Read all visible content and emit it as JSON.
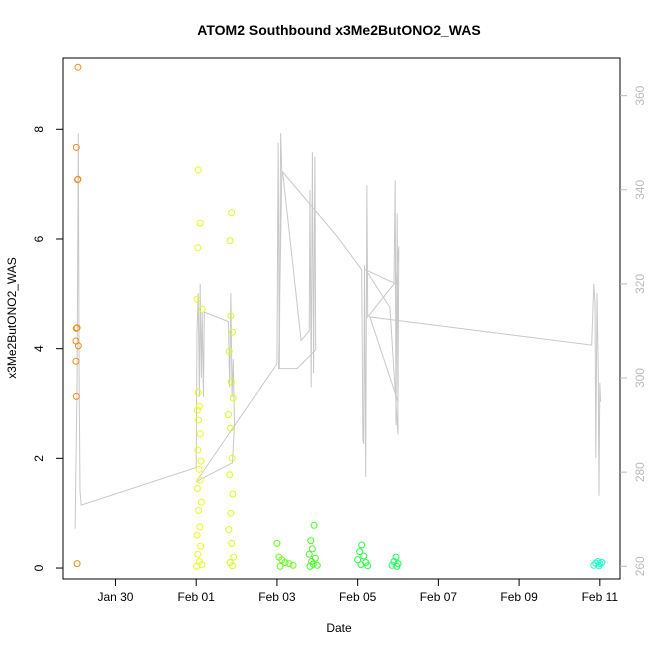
{
  "chart_data": {
    "type": "scatter",
    "title": "ATOM2 Southbound x3Me2ButONO2_WAS",
    "xlabel": "Date",
    "ylabel": "x3Me2ButONO2_WAS",
    "x_ticks": [
      "Jan 30",
      "Feb 01",
      "Feb 03",
      "Feb 05",
      "Feb 07",
      "Feb 09",
      "Feb 11"
    ],
    "x_tick_days": [
      29,
      31,
      33,
      35,
      37,
      39,
      41
    ],
    "xlim_days": [
      27.7,
      41.5
    ],
    "y_ticks": [
      0,
      2,
      4,
      6,
      8
    ],
    "ylim": [
      -0.2,
      9.3
    ],
    "y2_ticks": [
      260,
      280,
      300,
      320,
      340,
      360
    ],
    "y2lim": [
      257.3,
      368
    ],
    "colors": {
      "axis": "#000000",
      "right_axis": "#bbbbbb",
      "altitude_line": "#c8c8c8"
    },
    "points": [
      {
        "x": 28.07,
        "y": 9.13,
        "color": "#f08c1c"
      },
      {
        "x": 28.03,
        "y": 7.67,
        "color": "#f08c1c"
      },
      {
        "x": 28.06,
        "y": 7.08,
        "color": "#f08c1c"
      },
      {
        "x": 28.07,
        "y": 7.09,
        "color": "#f08c1c"
      },
      {
        "x": 28.03,
        "y": 4.37,
        "color": "#f08c1c"
      },
      {
        "x": 28.05,
        "y": 4.38,
        "color": "#f08c1c"
      },
      {
        "x": 28.02,
        "y": 4.14,
        "color": "#f08c1c"
      },
      {
        "x": 28.08,
        "y": 4.05,
        "color": "#f08c1c"
      },
      {
        "x": 28.02,
        "y": 3.77,
        "color": "#f08c1c"
      },
      {
        "x": 28.03,
        "y": 3.13,
        "color": "#f08c1c"
      },
      {
        "x": 28.05,
        "y": 0.08,
        "color": "#f08c1c"
      },
      {
        "x": 31.05,
        "y": 7.26,
        "color": "#e6ff1a"
      },
      {
        "x": 31.1,
        "y": 6.29,
        "color": "#e6ff1a"
      },
      {
        "x": 31.04,
        "y": 5.84,
        "color": "#e6ff1a"
      },
      {
        "x": 31.02,
        "y": 4.9,
        "color": "#e6ff1a"
      },
      {
        "x": 31.15,
        "y": 4.72,
        "color": "#e6ff1a"
      },
      {
        "x": 31.05,
        "y": 3.2,
        "color": "#e6ff1a"
      },
      {
        "x": 31.08,
        "y": 2.95,
        "color": "#e6ff1a"
      },
      {
        "x": 31.03,
        "y": 2.88,
        "color": "#e6ff1a"
      },
      {
        "x": 31.06,
        "y": 2.7,
        "color": "#e6ff1a"
      },
      {
        "x": 31.1,
        "y": 2.45,
        "color": "#e6ff1a"
      },
      {
        "x": 31.04,
        "y": 2.15,
        "color": "#e6ff1a"
      },
      {
        "x": 31.12,
        "y": 1.95,
        "color": "#e6ff1a"
      },
      {
        "x": 31.07,
        "y": 1.8,
        "color": "#e6ff1a"
      },
      {
        "x": 31.1,
        "y": 1.6,
        "color": "#e6ff1a"
      },
      {
        "x": 31.03,
        "y": 1.45,
        "color": "#e6ff1a"
      },
      {
        "x": 31.13,
        "y": 1.2,
        "color": "#e6ff1a"
      },
      {
        "x": 31.06,
        "y": 1.05,
        "color": "#e6ff1a"
      },
      {
        "x": 31.09,
        "y": 0.75,
        "color": "#e6ff1a"
      },
      {
        "x": 31.02,
        "y": 0.6,
        "color": "#e6ff1a"
      },
      {
        "x": 31.11,
        "y": 0.4,
        "color": "#e6ff1a"
      },
      {
        "x": 31.04,
        "y": 0.25,
        "color": "#e6ff1a"
      },
      {
        "x": 31.08,
        "y": 0.12,
        "color": "#e6ff1a"
      },
      {
        "x": 31.14,
        "y": 0.06,
        "color": "#e6ff1a"
      },
      {
        "x": 31.01,
        "y": 0.03,
        "color": "#e6ff1a"
      },
      {
        "x": 31.88,
        "y": 6.48,
        "color": "#d4ff1a"
      },
      {
        "x": 31.84,
        "y": 5.97,
        "color": "#d4ff1a"
      },
      {
        "x": 31.86,
        "y": 4.6,
        "color": "#d4ff1a"
      },
      {
        "x": 31.9,
        "y": 4.3,
        "color": "#d4ff1a"
      },
      {
        "x": 31.82,
        "y": 3.95,
        "color": "#d4ff1a"
      },
      {
        "x": 31.87,
        "y": 3.4,
        "color": "#d4ff1a"
      },
      {
        "x": 31.92,
        "y": 3.1,
        "color": "#d4ff1a"
      },
      {
        "x": 31.8,
        "y": 2.8,
        "color": "#d4ff1a"
      },
      {
        "x": 31.85,
        "y": 2.55,
        "color": "#d4ff1a"
      },
      {
        "x": 31.89,
        "y": 2.0,
        "color": "#d4ff1a"
      },
      {
        "x": 31.83,
        "y": 1.7,
        "color": "#d4ff1a"
      },
      {
        "x": 31.91,
        "y": 1.35,
        "color": "#d4ff1a"
      },
      {
        "x": 31.86,
        "y": 1.0,
        "color": "#d4ff1a"
      },
      {
        "x": 31.81,
        "y": 0.7,
        "color": "#d4ff1a"
      },
      {
        "x": 31.88,
        "y": 0.45,
        "color": "#d4ff1a"
      },
      {
        "x": 31.93,
        "y": 0.2,
        "color": "#d4ff1a"
      },
      {
        "x": 31.84,
        "y": 0.1,
        "color": "#d4ff1a"
      },
      {
        "x": 31.9,
        "y": 0.04,
        "color": "#d4ff1a"
      },
      {
        "x": 33.0,
        "y": 0.45,
        "color": "#66ff1a"
      },
      {
        "x": 33.05,
        "y": 0.2,
        "color": "#66ff1a"
      },
      {
        "x": 33.12,
        "y": 0.15,
        "color": "#66ff1a"
      },
      {
        "x": 33.2,
        "y": 0.1,
        "color": "#66ff1a"
      },
      {
        "x": 33.3,
        "y": 0.08,
        "color": "#66ff1a"
      },
      {
        "x": 33.4,
        "y": 0.05,
        "color": "#66ff1a"
      },
      {
        "x": 33.08,
        "y": 0.03,
        "color": "#66ff1a"
      },
      {
        "x": 33.92,
        "y": 0.78,
        "color": "#44ff22"
      },
      {
        "x": 33.84,
        "y": 0.5,
        "color": "#44ff22"
      },
      {
        "x": 33.88,
        "y": 0.35,
        "color": "#44ff22"
      },
      {
        "x": 33.8,
        "y": 0.25,
        "color": "#44ff22"
      },
      {
        "x": 33.95,
        "y": 0.18,
        "color": "#44ff22"
      },
      {
        "x": 33.86,
        "y": 0.12,
        "color": "#44ff22"
      },
      {
        "x": 33.9,
        "y": 0.07,
        "color": "#44ff22"
      },
      {
        "x": 33.82,
        "y": 0.03,
        "color": "#44ff22"
      },
      {
        "x": 34.0,
        "y": 0.05,
        "color": "#44ff22"
      },
      {
        "x": 35.1,
        "y": 0.42,
        "color": "#22ff44"
      },
      {
        "x": 35.05,
        "y": 0.3,
        "color": "#22ff44"
      },
      {
        "x": 35.15,
        "y": 0.22,
        "color": "#22ff44"
      },
      {
        "x": 35.0,
        "y": 0.15,
        "color": "#22ff44"
      },
      {
        "x": 35.2,
        "y": 0.1,
        "color": "#22ff44"
      },
      {
        "x": 35.08,
        "y": 0.06,
        "color": "#22ff44"
      },
      {
        "x": 35.25,
        "y": 0.04,
        "color": "#22ff44"
      },
      {
        "x": 35.95,
        "y": 0.2,
        "color": "#1aff55"
      },
      {
        "x": 35.9,
        "y": 0.12,
        "color": "#1aff55"
      },
      {
        "x": 36.0,
        "y": 0.08,
        "color": "#1aff55"
      },
      {
        "x": 35.85,
        "y": 0.05,
        "color": "#1aff55"
      },
      {
        "x": 35.97,
        "y": 0.03,
        "color": "#1aff55"
      },
      {
        "x": 40.85,
        "y": 0.05,
        "color": "#1affcc"
      },
      {
        "x": 40.9,
        "y": 0.09,
        "color": "#1affcc"
      },
      {
        "x": 40.95,
        "y": 0.12,
        "color": "#1affcc"
      },
      {
        "x": 41.0,
        "y": 0.08,
        "color": "#1affcc"
      },
      {
        "x": 41.05,
        "y": 0.1,
        "color": "#1affcc"
      },
      {
        "x": 40.98,
        "y": 0.04,
        "color": "#1affcc"
      }
    ],
    "altitude_line": [
      [
        28.0,
        268
      ],
      [
        28.05,
        300
      ],
      [
        28.08,
        352
      ],
      [
        28.1,
        300
      ],
      [
        28.12,
        276
      ],
      [
        28.15,
        273
      ],
      [
        31.0,
        281
      ],
      [
        31.02,
        310
      ],
      [
        31.05,
        318
      ],
      [
        31.08,
        296
      ],
      [
        31.1,
        320
      ],
      [
        31.13,
        300
      ],
      [
        31.15,
        314
      ],
      [
        31.18,
        296
      ],
      [
        31.2,
        314
      ],
      [
        31.8,
        312
      ],
      [
        31.83,
        298
      ],
      [
        31.86,
        318
      ],
      [
        31.89,
        296
      ],
      [
        31.92,
        304
      ],
      [
        31.95,
        290
      ],
      [
        31.9,
        282
      ],
      [
        31.0,
        278
      ],
      [
        33.0,
        303
      ],
      [
        33.03,
        350
      ],
      [
        33.06,
        302
      ],
      [
        33.09,
        352
      ],
      [
        33.12,
        344
      ],
      [
        33.15,
        343
      ],
      [
        33.6,
        308
      ],
      [
        33.8,
        310
      ],
      [
        33.82,
        340
      ],
      [
        33.85,
        298
      ],
      [
        33.88,
        348
      ],
      [
        33.91,
        301
      ],
      [
        33.94,
        347
      ],
      [
        33.96,
        306
      ],
      [
        33.5,
        302
      ],
      [
        33.04,
        302
      ],
      [
        33.12,
        344
      ],
      [
        34.5,
        330
      ],
      [
        35.1,
        323
      ],
      [
        35.13,
        287
      ],
      [
        35.15,
        286
      ],
      [
        35.17,
        324
      ],
      [
        35.2,
        279
      ],
      [
        35.23,
        341
      ],
      [
        35.25,
        313
      ],
      [
        35.9,
        320
      ],
      [
        35.93,
        342
      ],
      [
        35.95,
        290
      ],
      [
        35.98,
        335
      ],
      [
        36.0,
        288
      ],
      [
        35.8,
        315
      ],
      [
        35.2,
        323
      ],
      [
        35.95,
        320
      ],
      [
        36.02,
        328
      ],
      [
        36.0,
        295
      ],
      [
        35.3,
        313
      ],
      [
        40.8,
        307
      ],
      [
        40.85,
        320
      ],
      [
        40.88,
        316
      ],
      [
        40.9,
        283
      ],
      [
        40.93,
        318
      ],
      [
        40.96,
        302
      ],
      [
        40.98,
        275
      ],
      [
        41.0,
        299
      ],
      [
        41.02,
        295
      ]
    ]
  }
}
